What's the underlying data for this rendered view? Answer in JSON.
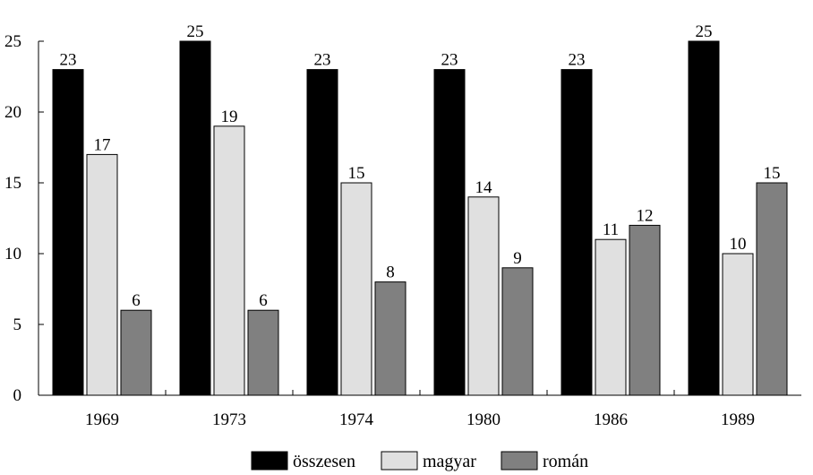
{
  "chart_data": {
    "type": "bar",
    "categories": [
      "1969",
      "1973",
      "1974",
      "1980",
      "1986",
      "1989"
    ],
    "series": [
      {
        "name": "összesen",
        "color": "#000000",
        "values": [
          23,
          25,
          23,
          23,
          23,
          25
        ]
      },
      {
        "name": "magyar",
        "color": "#e0e0e0",
        "values": [
          17,
          19,
          15,
          14,
          11,
          10
        ]
      },
      {
        "name": "román",
        "color": "#808080",
        "values": [
          6,
          6,
          8,
          9,
          12,
          15
        ]
      }
    ],
    "ylim": [
      0,
      25
    ],
    "yticks": [
      "0",
      "5",
      "10",
      "15",
      "20",
      "25"
    ],
    "data_labels": true,
    "grid": false,
    "legend_position": "bottom-center"
  }
}
